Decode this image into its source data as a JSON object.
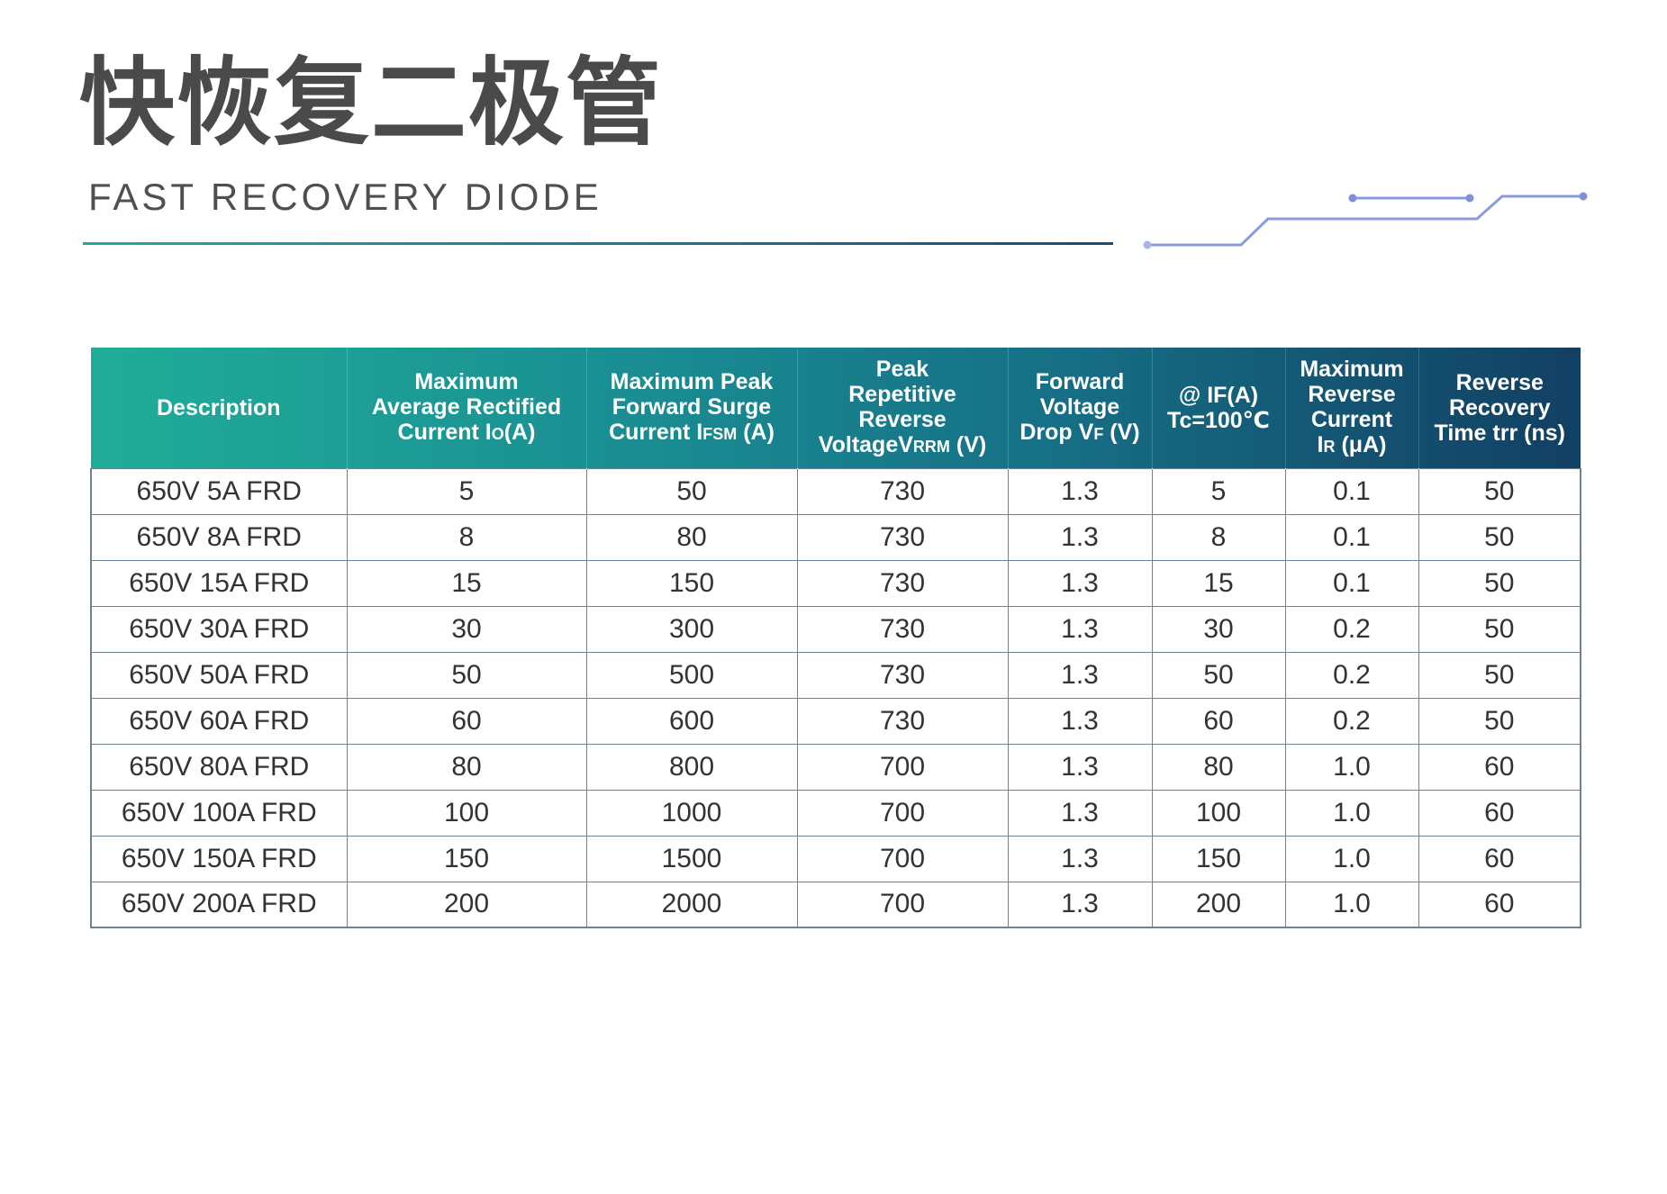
{
  "title": {
    "cn": "快恢复二极管",
    "en": "FAST RECOVERY DIODE"
  },
  "colors": {
    "title": "#4a4a4a",
    "header_start": "#20ad98",
    "header_end": "#123f63",
    "grid": "#6e8590",
    "deco_line": "#8a9be0"
  },
  "table": {
    "headers": [
      {
        "main": "Description"
      },
      {
        "lines": [
          "Maximum",
          "Average Rectified"
        ],
        "pre": "Current I",
        "sub": "O",
        "post": "(A)"
      },
      {
        "lines": [
          "Maximum Peak",
          "Forward Surge"
        ],
        "pre": "Current I",
        "sub": "FSM",
        "post": " (A)"
      },
      {
        "lines": [
          "Peak",
          "Repetitive",
          "Reverse"
        ],
        "pre": "VoltageV",
        "sub": "RRM",
        "post": " (V)"
      },
      {
        "lines": [
          "Forward",
          "Voltage"
        ],
        "pre": "Drop V",
        "sub": "F",
        "post": " (V)"
      },
      {
        "lines": [
          "@ IF(A)",
          "Tc=100℃"
        ]
      },
      {
        "lines": [
          "Maximum",
          "Reverse",
          "Current"
        ],
        "pre": "I",
        "sub": "R",
        "post": " (μA)"
      },
      {
        "lines": [
          "Reverse",
          "Recovery",
          "Time trr (ns)"
        ]
      }
    ],
    "rows": [
      [
        "650V 5A FRD",
        "5",
        "50",
        "730",
        "1.3",
        "5",
        "0.1",
        "50"
      ],
      [
        "650V 8A FRD",
        "8",
        "80",
        "730",
        "1.3",
        "8",
        "0.1",
        "50"
      ],
      [
        "650V 15A FRD",
        "15",
        "150",
        "730",
        "1.3",
        "15",
        "0.1",
        "50"
      ],
      [
        "650V 30A FRD",
        "30",
        "300",
        "730",
        "1.3",
        "30",
        "0.2",
        "50"
      ],
      [
        "650V 50A FRD",
        "50",
        "500",
        "730",
        "1.3",
        "50",
        "0.2",
        "50"
      ],
      [
        "650V 60A FRD",
        "60",
        "600",
        "730",
        "1.3",
        "60",
        "0.2",
        "50"
      ],
      [
        "650V 80A FRD",
        "80",
        "800",
        "700",
        "1.3",
        "80",
        "1.0",
        "60"
      ],
      [
        "650V 100A FRD",
        "100",
        "1000",
        "700",
        "1.3",
        "100",
        "1.0",
        "60"
      ],
      [
        "650V 150A FRD",
        "150",
        "1500",
        "700",
        "1.3",
        "150",
        "1.0",
        "60"
      ],
      [
        "650V 200A FRD",
        "200",
        "2000",
        "700",
        "1.3",
        "200",
        "1.0",
        "60"
      ]
    ]
  }
}
